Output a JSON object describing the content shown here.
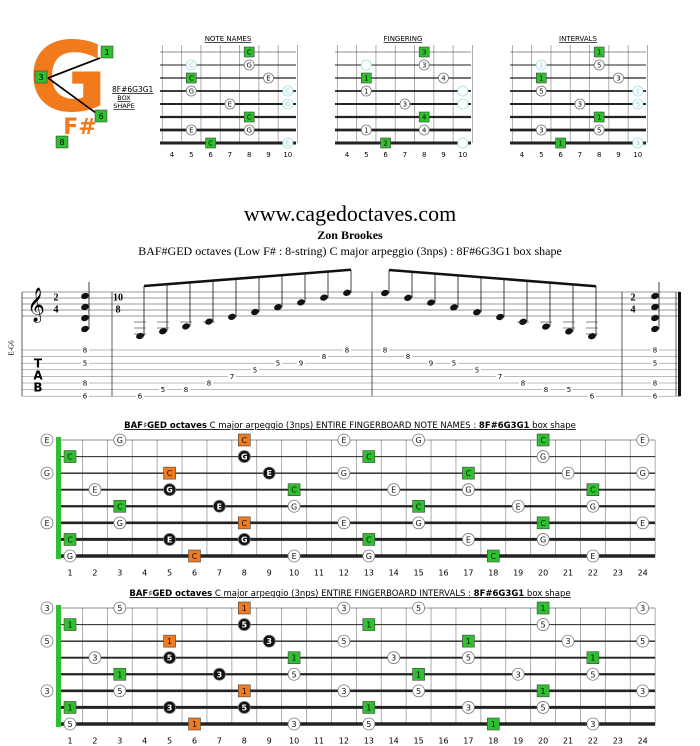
{
  "logo": {
    "letter": "G",
    "sub": "F#",
    "fingers": [
      "1",
      "3",
      "6",
      "8"
    ],
    "code": "8F#6G3G1",
    "box": "BOX",
    "shape": "SHAPE"
  },
  "mini": [
    {
      "title": "NOTE NAMES",
      "frets": [
        4,
        5,
        6,
        7,
        8,
        9,
        10
      ],
      "strings": [
        [
          [
            8,
            "C",
            "g"
          ]
        ],
        [
          [
            5,
            "C",
            "f"
          ],
          [
            8,
            "G",
            "o"
          ]
        ],
        [
          [
            5,
            "C",
            "g"
          ],
          [
            9,
            "E",
            "o"
          ]
        ],
        [
          [
            5,
            "G",
            "o"
          ],
          [
            10,
            "C",
            "f"
          ]
        ],
        [
          [
            7,
            "E",
            "o"
          ],
          [
            10,
            "G",
            "f"
          ]
        ],
        [
          [
            8,
            "C",
            "g"
          ]
        ],
        [
          [
            5,
            "E",
            "o"
          ],
          [
            8,
            "G",
            "o"
          ]
        ],
        [
          [
            6,
            "C",
            "g"
          ],
          [
            10,
            "E",
            "f"
          ]
        ]
      ]
    },
    {
      "title": "FINGERING",
      "frets": [
        4,
        5,
        6,
        7,
        8,
        9,
        10
      ],
      "strings": [
        [
          [
            8,
            "3",
            "g"
          ]
        ],
        [
          [
            5,
            null,
            "f"
          ],
          [
            8,
            "3",
            "o"
          ]
        ],
        [
          [
            5,
            "1",
            "g"
          ],
          [
            9,
            "4",
            "o"
          ]
        ],
        [
          [
            5,
            "1",
            "o"
          ],
          [
            10,
            null,
            "f"
          ]
        ],
        [
          [
            7,
            "3",
            "o"
          ],
          [
            10,
            null,
            "f"
          ]
        ],
        [
          [
            8,
            "4",
            "g"
          ]
        ],
        [
          [
            5,
            "1",
            "o"
          ],
          [
            8,
            "4",
            "o"
          ]
        ],
        [
          [
            6,
            "2",
            "g"
          ],
          [
            10,
            null,
            "f"
          ]
        ]
      ]
    },
    {
      "title": "INTERVALS",
      "frets": [
        4,
        5,
        6,
        7,
        8,
        9,
        10
      ],
      "strings": [
        [
          [
            8,
            "1",
            "g"
          ]
        ],
        [
          [
            5,
            "1",
            "f"
          ],
          [
            8,
            "5",
            "o"
          ]
        ],
        [
          [
            5,
            "1",
            "g"
          ],
          [
            9,
            "3",
            "o"
          ]
        ],
        [
          [
            5,
            "5",
            "o"
          ],
          [
            10,
            "1",
            "f"
          ]
        ],
        [
          [
            7,
            "3",
            "o"
          ],
          [
            10,
            "5",
            "f"
          ]
        ],
        [
          [
            8,
            "1",
            "g"
          ]
        ],
        [
          [
            5,
            "3",
            "o"
          ],
          [
            8,
            "5",
            "o"
          ]
        ],
        [
          [
            6,
            "1",
            "g"
          ],
          [
            10,
            "3",
            "f"
          ]
        ]
      ]
    }
  ],
  "header": {
    "url": "www.cagedoctaves.com",
    "author": "Zon Brookes",
    "subtitle": "BAF#GED octaves (Low F# : 8-string) C major arpeggio (3nps) : 8F#6G3G1 box shape"
  },
  "notation": {
    "clef": "𝄞",
    "tuning": "E-G6",
    "tab_label": [
      "T",
      "A",
      "B"
    ],
    "time_start": [
      "2",
      "4"
    ],
    "time_run": [
      "10",
      "8"
    ],
    "time_end": [
      "2",
      "4"
    ],
    "chord_left": [
      [
        1,
        8
      ],
      [
        3,
        5
      ],
      [
        6,
        8
      ],
      [
        8,
        6
      ]
    ],
    "run": [
      [
        8,
        6
      ],
      [
        7,
        5
      ],
      [
        7,
        8
      ],
      [
        6,
        8
      ],
      [
        5,
        7
      ],
      [
        4,
        5
      ],
      [
        3,
        5
      ],
      [
        3,
        9
      ],
      [
        2,
        8
      ],
      [
        1,
        8
      ],
      [
        1,
        8
      ],
      [
        2,
        8
      ],
      [
        3,
        9
      ],
      [
        3,
        5
      ],
      [
        4,
        5
      ],
      [
        5,
        7
      ],
      [
        6,
        8
      ],
      [
        7,
        8
      ],
      [
        7,
        5
      ],
      [
        8,
        6
      ]
    ],
    "chord_right": [
      [
        1,
        8
      ],
      [
        3,
        5
      ],
      [
        6,
        8
      ],
      [
        8,
        6
      ]
    ]
  },
  "boards": [
    {
      "title": [
        "BAF♯GED octaves",
        " C major arpeggio (3nps) ENTIRE FINGERBOARD  NOTE NAMES : ",
        "8F#6G3G1",
        " box shape"
      ],
      "frets": [
        1,
        2,
        3,
        4,
        5,
        6,
        7,
        8,
        9,
        10,
        11,
        12,
        13,
        14,
        15,
        16,
        17,
        18,
        19,
        20,
        21,
        22,
        23,
        24
      ],
      "strings": [
        [
          [
            0,
            "E",
            "o"
          ],
          [
            3,
            "G",
            "o"
          ],
          [
            8,
            "C",
            "r"
          ],
          [
            12,
            "E",
            "o"
          ],
          [
            15,
            "G",
            "o"
          ],
          [
            20,
            "C",
            "g"
          ],
          [
            24,
            "E",
            "o"
          ]
        ],
        [
          [
            1,
            "C",
            "g"
          ],
          [
            8,
            "G",
            "b"
          ],
          [
            13,
            "C",
            "g"
          ],
          [
            20,
            "G",
            "o"
          ]
        ],
        [
          [
            0,
            "G",
            "o"
          ],
          [
            5,
            "C",
            "r"
          ],
          [
            9,
            "E",
            "b"
          ],
          [
            12,
            "G",
            "o"
          ],
          [
            17,
            "C",
            "g"
          ],
          [
            21,
            "E",
            "o"
          ],
          [
            24,
            "G",
            "o"
          ]
        ],
        [
          [
            2,
            "E",
            "o"
          ],
          [
            5,
            "G",
            "b"
          ],
          [
            10,
            "C",
            "g"
          ],
          [
            14,
            "E",
            "o"
          ],
          [
            17,
            "G",
            "o"
          ],
          [
            22,
            "C",
            "g"
          ]
        ],
        [
          [
            3,
            "C",
            "g"
          ],
          [
            7,
            "E",
            "b"
          ],
          [
            10,
            "G",
            "o"
          ],
          [
            15,
            "C",
            "g"
          ],
          [
            19,
            "E",
            "o"
          ],
          [
            22,
            "G",
            "o"
          ]
        ],
        [
          [
            0,
            "E",
            "o"
          ],
          [
            3,
            "G",
            "o"
          ],
          [
            8,
            "C",
            "r"
          ],
          [
            12,
            "E",
            "o"
          ],
          [
            15,
            "G",
            "o"
          ],
          [
            20,
            "C",
            "g"
          ],
          [
            24,
            "E",
            "o"
          ]
        ],
        [
          [
            1,
            "C",
            "g"
          ],
          [
            5,
            "E",
            "b"
          ],
          [
            8,
            "G",
            "b"
          ],
          [
            13,
            "C",
            "g"
          ],
          [
            17,
            "E",
            "o"
          ],
          [
            20,
            "G",
            "o"
          ]
        ],
        [
          [
            1,
            "G",
            "o"
          ],
          [
            6,
            "C",
            "r"
          ],
          [
            10,
            "E",
            "o"
          ],
          [
            13,
            "G",
            "o"
          ],
          [
            18,
            "C",
            "g"
          ],
          [
            22,
            "E",
            "o"
          ]
        ]
      ]
    },
    {
      "title": [
        "BAF♯GED octaves",
        " C major arpeggio (3nps) ENTIRE FINGERBOARD  INTERVALS : ",
        "8F#6G3G1",
        " box shape"
      ],
      "frets": [
        1,
        2,
        3,
        4,
        5,
        6,
        7,
        8,
        9,
        10,
        11,
        12,
        13,
        14,
        15,
        16,
        17,
        18,
        19,
        20,
        21,
        22,
        23,
        24
      ],
      "strings": [
        [
          [
            0,
            "3",
            "o"
          ],
          [
            3,
            "5",
            "o"
          ],
          [
            8,
            "1",
            "r"
          ],
          [
            12,
            "3",
            "o"
          ],
          [
            15,
            "5",
            "o"
          ],
          [
            20,
            "1",
            "g"
          ],
          [
            24,
            "3",
            "o"
          ]
        ],
        [
          [
            1,
            "1",
            "g"
          ],
          [
            8,
            "5",
            "b"
          ],
          [
            13,
            "1",
            "g"
          ],
          [
            20,
            "5",
            "o"
          ]
        ],
        [
          [
            0,
            "5",
            "o"
          ],
          [
            5,
            "1",
            "r"
          ],
          [
            9,
            "3",
            "b"
          ],
          [
            12,
            "5",
            "o"
          ],
          [
            17,
            "1",
            "g"
          ],
          [
            21,
            "3",
            "o"
          ],
          [
            24,
            "5",
            "o"
          ]
        ],
        [
          [
            2,
            "3",
            "o"
          ],
          [
            5,
            "5",
            "b"
          ],
          [
            10,
            "1",
            "g"
          ],
          [
            14,
            "3",
            "o"
          ],
          [
            17,
            "5",
            "o"
          ],
          [
            22,
            "1",
            "g"
          ]
        ],
        [
          [
            3,
            "1",
            "g"
          ],
          [
            7,
            "3",
            "b"
          ],
          [
            10,
            "5",
            "o"
          ],
          [
            15,
            "1",
            "g"
          ],
          [
            19,
            "3",
            "o"
          ],
          [
            22,
            "5",
            "o"
          ]
        ],
        [
          [
            0,
            "3",
            "o"
          ],
          [
            3,
            "5",
            "o"
          ],
          [
            8,
            "1",
            "r"
          ],
          [
            12,
            "3",
            "o"
          ],
          [
            15,
            "5",
            "o"
          ],
          [
            20,
            "1",
            "g"
          ],
          [
            24,
            "3",
            "o"
          ]
        ],
        [
          [
            1,
            "1",
            "g"
          ],
          [
            5,
            "3",
            "b"
          ],
          [
            8,
            "5",
            "b"
          ],
          [
            13,
            "1",
            "g"
          ],
          [
            17,
            "3",
            "o"
          ],
          [
            20,
            "5",
            "o"
          ]
        ],
        [
          [
            1,
            "5",
            "o"
          ],
          [
            6,
            "1",
            "r"
          ],
          [
            10,
            "3",
            "o"
          ],
          [
            13,
            "5",
            "o"
          ],
          [
            18,
            "1",
            "g"
          ],
          [
            22,
            "3",
            "o"
          ]
        ]
      ]
    }
  ]
}
